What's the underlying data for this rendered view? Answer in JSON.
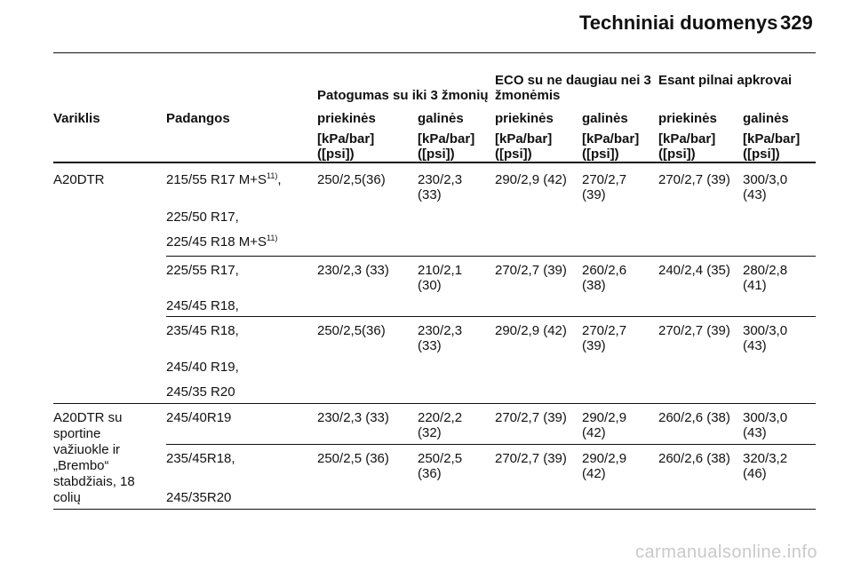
{
  "header": {
    "title": "Techniniai duomenys",
    "page_number": "329"
  },
  "table": {
    "group_headers": [
      "Patogumas su iki 3 žmonių",
      "ECO su ne daugiau nei 3 žmonėmis",
      "Esant pilnai apkrovai"
    ],
    "col_headers": [
      "Variklis",
      "Padangos",
      "priekinės",
      "galinės",
      "priekinės",
      "galinės",
      "priekinės",
      "galinės"
    ],
    "units": "[kPa/bar] ([psi])",
    "groups": [
      {
        "engine": "A20DTR",
        "rows": [
          {
            "tyres": [
              [
                "215/55 R17 M+S",
                "11)",
                ","
              ],
              [
                "225/50 R17,",
                "",
                ""
              ],
              [
                "225/45 R18 M+S",
                "11)",
                ""
              ]
            ],
            "values": [
              "250/2,5(36)",
              "230/2,3 (33)",
              "290/2,9 (42)",
              "270/2,7 (39)",
              "270/2,7 (39)",
              "300/3,0 (43)"
            ]
          },
          {
            "tyres": [
              [
                "225/55 R17,",
                "",
                ""
              ],
              [
                "245/45 R18,",
                "",
                ""
              ]
            ],
            "values": [
              "230/2,3 (33)",
              "210/2,1 (30)",
              "270/2,7 (39)",
              "260/2,6 (38)",
              "240/2,4 (35)",
              "280/2,8 (41)"
            ]
          },
          {
            "tyres": [
              [
                "235/45 R18,",
                "",
                ""
              ],
              [
                "245/40 R19,",
                "",
                ""
              ],
              [
                "245/35 R20",
                "",
                ""
              ]
            ],
            "values": [
              "250/2,5(36)",
              "230/2,3 (33)",
              "290/2,9 (42)",
              "270/2,7 (39)",
              "270/2,7 (39)",
              "300/3,0 (43)"
            ]
          }
        ]
      },
      {
        "engine": "A20DTR su sportine važiuokle ir „Brembo“ stabdžiais, 18 colių",
        "rows": [
          {
            "tyres": [
              [
                "245/40R19",
                "",
                ""
              ]
            ],
            "values": [
              "230/2,3 (33)",
              "220/2,2 (32)",
              "270/2,7 (39)",
              "290/2,9 (42)",
              "260/2,6 (38)",
              "300/3,0 (43)"
            ]
          },
          {
            "tyres": [
              [
                "235/45R18,",
                "",
                ""
              ],
              [
                "245/35R20",
                "",
                ""
              ]
            ],
            "values": [
              "250/2,5 (36)",
              "250/2,5 (36)",
              "270/2,7 (39)",
              "290/2,9 (42)",
              "260/2,6 (38)",
              "320/3,2 (46)"
            ]
          }
        ]
      }
    ]
  },
  "watermark": "carmanualsonline.info"
}
